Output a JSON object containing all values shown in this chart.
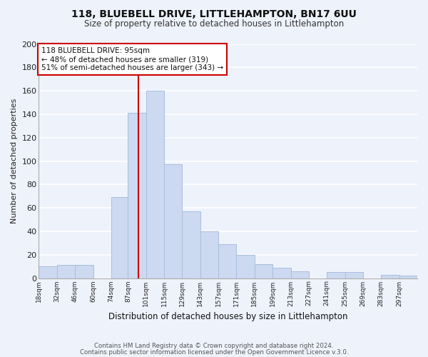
{
  "title": "118, BLUEBELL DRIVE, LITTLEHAMPTON, BN17 6UU",
  "subtitle": "Size of property relative to detached houses in Littlehampton",
  "xlabel": "Distribution of detached houses by size in Littlehampton",
  "ylabel": "Number of detached properties",
  "bar_color": "#ccd9f0",
  "bar_edge_color": "#a8bedd",
  "background_color": "#eef2fb",
  "grid_color": "#ffffff",
  "vline_x": 95,
  "vline_color": "#cc0000",
  "annotation_title": "118 BLUEBELL DRIVE: 95sqm",
  "annotation_line1": "← 48% of detached houses are smaller (319)",
  "annotation_line2": "51% of semi-detached houses are larger (343) →",
  "annotation_box_color": "#ffffff",
  "annotation_box_edge": "#cc0000",
  "bins": [
    18,
    32,
    46,
    60,
    74,
    87,
    101,
    115,
    129,
    143,
    157,
    171,
    185,
    199,
    213,
    227,
    241,
    255,
    269,
    283,
    297,
    311
  ],
  "counts": [
    10,
    11,
    11,
    0,
    69,
    141,
    160,
    97,
    57,
    40,
    29,
    20,
    12,
    9,
    6,
    0,
    5,
    5,
    0,
    3,
    2
  ],
  "tick_labels": [
    "18sqm",
    "32sqm",
    "46sqm",
    "60sqm",
    "74sqm",
    "87sqm",
    "101sqm",
    "115sqm",
    "129sqm",
    "143sqm",
    "157sqm",
    "171sqm",
    "185sqm",
    "199sqm",
    "213sqm",
    "227sqm",
    "241sqm",
    "255sqm",
    "269sqm",
    "283sqm",
    "297sqm"
  ],
  "ylim": [
    0,
    200
  ],
  "yticks": [
    0,
    20,
    40,
    60,
    80,
    100,
    120,
    140,
    160,
    180,
    200
  ],
  "footer1": "Contains HM Land Registry data © Crown copyright and database right 2024.",
  "footer2": "Contains public sector information licensed under the Open Government Licence v.3.0."
}
